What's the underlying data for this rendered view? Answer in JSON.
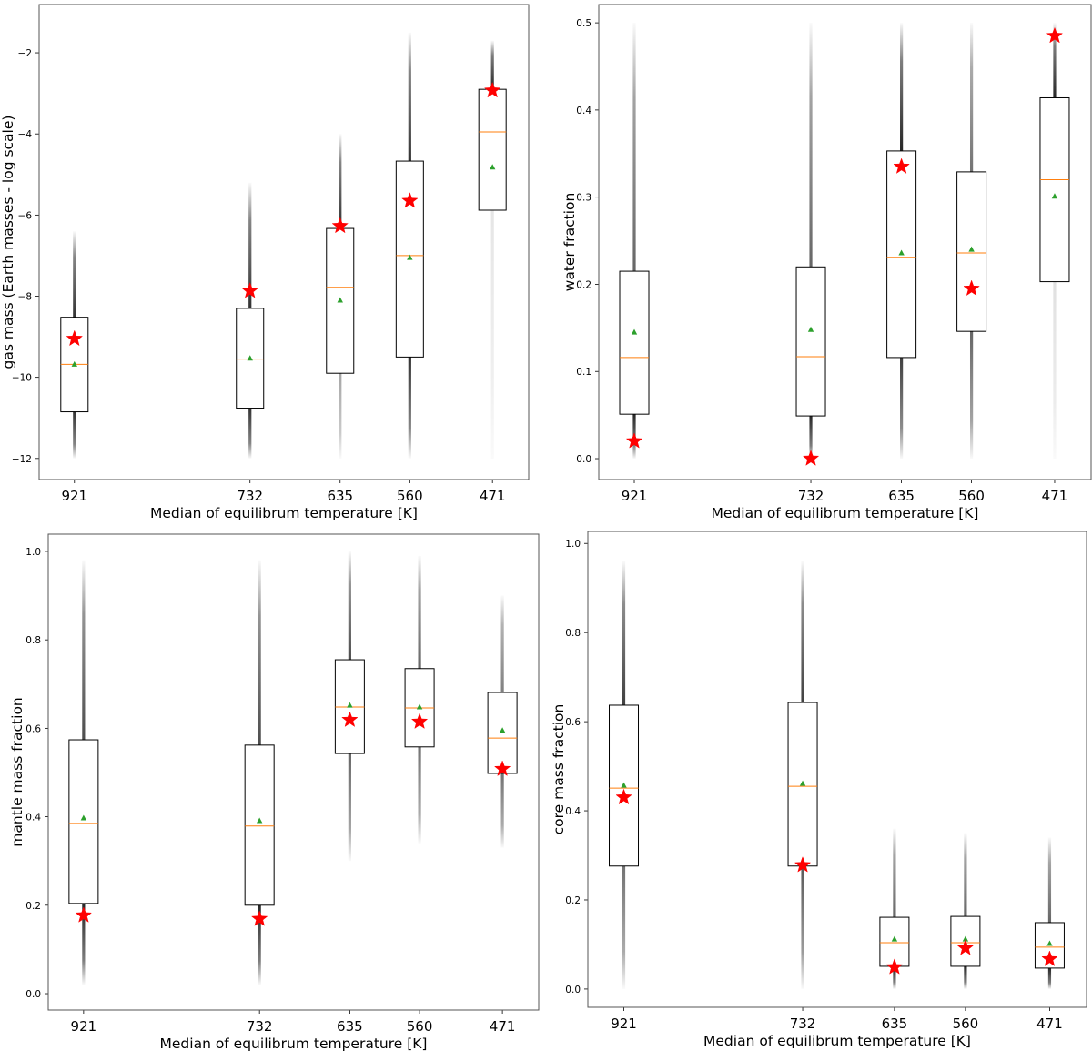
{
  "colors": {
    "box": "#000000",
    "median": "#ff7f0e",
    "mean": "#2ca02c",
    "star": "#ff0000",
    "points": "#000000"
  },
  "chart_data": [
    {
      "type": "box",
      "xlabel": "Median of equilibrum temperature [K]",
      "ylabel": "gas mass (Earth masses - log scale)",
      "xlim": [
        959,
        432
      ],
      "ylim": [
        -12.52,
        -0.81
      ],
      "yticks": [
        -12,
        -10,
        -8,
        -6,
        -4,
        -2
      ],
      "ytick_labels": [
        "−12",
        "−10",
        "−8",
        "−6",
        "−4",
        "−2"
      ],
      "grid": false,
      "boxes": [
        {
          "x": 921,
          "label": "921",
          "q1": -10.85,
          "median": -9.68,
          "q3": -8.52,
          "mean": -9.68,
          "star": -9.05,
          "points_range": [
            -12,
            -6.4
          ],
          "lower_density": 0.8,
          "upper_density": 0.8
        },
        {
          "x": 732,
          "label": "732",
          "q1": -10.76,
          "median": -9.55,
          "q3": -8.3,
          "mean": -9.53,
          "star": -7.87,
          "points_range": [
            -12,
            -5.2
          ],
          "lower_density": 0.8,
          "upper_density": 0.8
        },
        {
          "x": 635,
          "label": "635",
          "q1": -9.9,
          "median": -7.78,
          "q3": -6.33,
          "mean": -8.1,
          "star": -6.27,
          "points_range": [
            -12,
            -4.0
          ],
          "lower_density": 0.35,
          "upper_density": 0.8
        },
        {
          "x": 560,
          "label": "560",
          "q1": -9.5,
          "median": -7.0,
          "q3": -4.67,
          "mean": -7.05,
          "star": -5.65,
          "points_range": [
            -12,
            -1.5
          ],
          "lower_density": 0.8,
          "upper_density": 0.8
        },
        {
          "x": 471,
          "label": "471",
          "q1": -5.88,
          "median": -3.95,
          "q3": -2.9,
          "mean": -4.82,
          "star": -2.93,
          "points_range": [
            -12,
            -1.7
          ],
          "lower_density": 0.1,
          "upper_density": 0.85
        }
      ]
    },
    {
      "type": "box",
      "xlabel": "Median of equilibrum temperature [K]",
      "ylabel": "water fraction",
      "xlim": [
        959,
        432
      ],
      "ylim": [
        -0.024,
        0.521
      ],
      "yticks": [
        0,
        0.1,
        0.2,
        0.3,
        0.4,
        0.5
      ],
      "ytick_labels": [
        "0.0",
        "0.1",
        "0.2",
        "0.3",
        "0.4",
        "0.5"
      ],
      "grid": false,
      "boxes": [
        {
          "x": 921,
          "label": "921",
          "q1": 0.051,
          "median": 0.116,
          "q3": 0.215,
          "mean": 0.145,
          "star": 0.02,
          "points_range": [
            0,
            0.5
          ],
          "lower_density": 0.85,
          "upper_density": 0.6
        },
        {
          "x": 732,
          "label": "732",
          "q1": 0.049,
          "median": 0.117,
          "q3": 0.22,
          "mean": 0.148,
          "star": 0.0,
          "points_range": [
            0,
            0.5
          ],
          "lower_density": 0.85,
          "upper_density": 0.6
        },
        {
          "x": 635,
          "label": "635",
          "q1": 0.116,
          "median": 0.231,
          "q3": 0.353,
          "mean": 0.236,
          "star": 0.335,
          "points_range": [
            0,
            0.5
          ],
          "lower_density": 0.75,
          "upper_density": 0.85
        },
        {
          "x": 560,
          "label": "560",
          "q1": 0.146,
          "median": 0.236,
          "q3": 0.329,
          "mean": 0.24,
          "star": 0.195,
          "points_range": [
            0,
            0.5
          ],
          "lower_density": 0.6,
          "upper_density": 0.55
        },
        {
          "x": 471,
          "label": "471",
          "q1": 0.203,
          "median": 0.32,
          "q3": 0.414,
          "mean": 0.301,
          "star": 0.485,
          "points_range": [
            0,
            0.5
          ],
          "lower_density": 0.12,
          "upper_density": 0.85
        }
      ]
    },
    {
      "type": "box",
      "xlabel": "Median of equilibrum temperature [K]",
      "ylabel": "mantle mass fraction",
      "xlim": [
        959,
        432
      ],
      "ylim": [
        -0.037,
        1.039
      ],
      "yticks": [
        0,
        0.2,
        0.4,
        0.6,
        0.8,
        1.0
      ],
      "ytick_labels": [
        "0.0",
        "0.2",
        "0.4",
        "0.6",
        "0.8",
        "1.0"
      ],
      "grid": false,
      "boxes": [
        {
          "x": 921,
          "label": "921",
          "q1": 0.204,
          "median": 0.385,
          "q3": 0.574,
          "mean": 0.397,
          "star": 0.177,
          "points_range": [
            0.02,
            0.98
          ],
          "lower_density": 0.85,
          "upper_density": 0.7
        },
        {
          "x": 732,
          "label": "732",
          "q1": 0.2,
          "median": 0.379,
          "q3": 0.562,
          "mean": 0.391,
          "star": 0.169,
          "points_range": [
            0.02,
            0.98
          ],
          "lower_density": 0.85,
          "upper_density": 0.7
        },
        {
          "x": 635,
          "label": "635",
          "q1": 0.543,
          "median": 0.648,
          "q3": 0.755,
          "mean": 0.652,
          "star": 0.619,
          "points_range": [
            0.3,
            1.0
          ],
          "lower_density": 0.6,
          "upper_density": 0.7
        },
        {
          "x": 560,
          "label": "560",
          "q1": 0.558,
          "median": 0.646,
          "q3": 0.735,
          "mean": 0.648,
          "star": 0.615,
          "points_range": [
            0.34,
            0.99
          ],
          "lower_density": 0.55,
          "upper_density": 0.6
        },
        {
          "x": 471,
          "label": "471",
          "q1": 0.498,
          "median": 0.578,
          "q3": 0.681,
          "mean": 0.595,
          "star": 0.508,
          "points_range": [
            0.33,
            0.9
          ],
          "lower_density": 0.55,
          "upper_density": 0.5
        }
      ]
    },
    {
      "type": "box",
      "xlabel": "Median of equilibrum temperature [K]",
      "ylabel": "core mass fraction",
      "xlim": [
        959,
        432
      ],
      "ylim": [
        -0.041,
        1.027
      ],
      "yticks": [
        0,
        0.2,
        0.4,
        0.6,
        0.8,
        1.0
      ],
      "ytick_labels": [
        "0.0",
        "0.2",
        "0.4",
        "0.6",
        "0.8",
        "1.0"
      ],
      "grid": false,
      "boxes": [
        {
          "x": 921,
          "label": "921",
          "q1": 0.276,
          "median": 0.451,
          "q3": 0.637,
          "mean": 0.457,
          "star": 0.43,
          "points_range": [
            0,
            0.96
          ],
          "lower_density": 0.55,
          "upper_density": 0.75
        },
        {
          "x": 732,
          "label": "732",
          "q1": 0.276,
          "median": 0.455,
          "q3": 0.643,
          "mean": 0.461,
          "star": 0.278,
          "points_range": [
            0,
            0.96
          ],
          "lower_density": 0.65,
          "upper_density": 0.75
        },
        {
          "x": 635,
          "label": "635",
          "q1": 0.051,
          "median": 0.104,
          "q3": 0.161,
          "mean": 0.112,
          "star": 0.049,
          "points_range": [
            0,
            0.36
          ],
          "lower_density": 0.85,
          "upper_density": 0.6
        },
        {
          "x": 560,
          "label": "560",
          "q1": 0.051,
          "median": 0.104,
          "q3": 0.163,
          "mean": 0.112,
          "star": 0.092,
          "points_range": [
            0,
            0.35
          ],
          "lower_density": 0.85,
          "upper_density": 0.6
        },
        {
          "x": 471,
          "label": "471",
          "q1": 0.047,
          "median": 0.094,
          "q3": 0.149,
          "mean": 0.102,
          "star": 0.067,
          "points_range": [
            0,
            0.34
          ],
          "lower_density": 0.85,
          "upper_density": 0.6
        }
      ]
    }
  ]
}
